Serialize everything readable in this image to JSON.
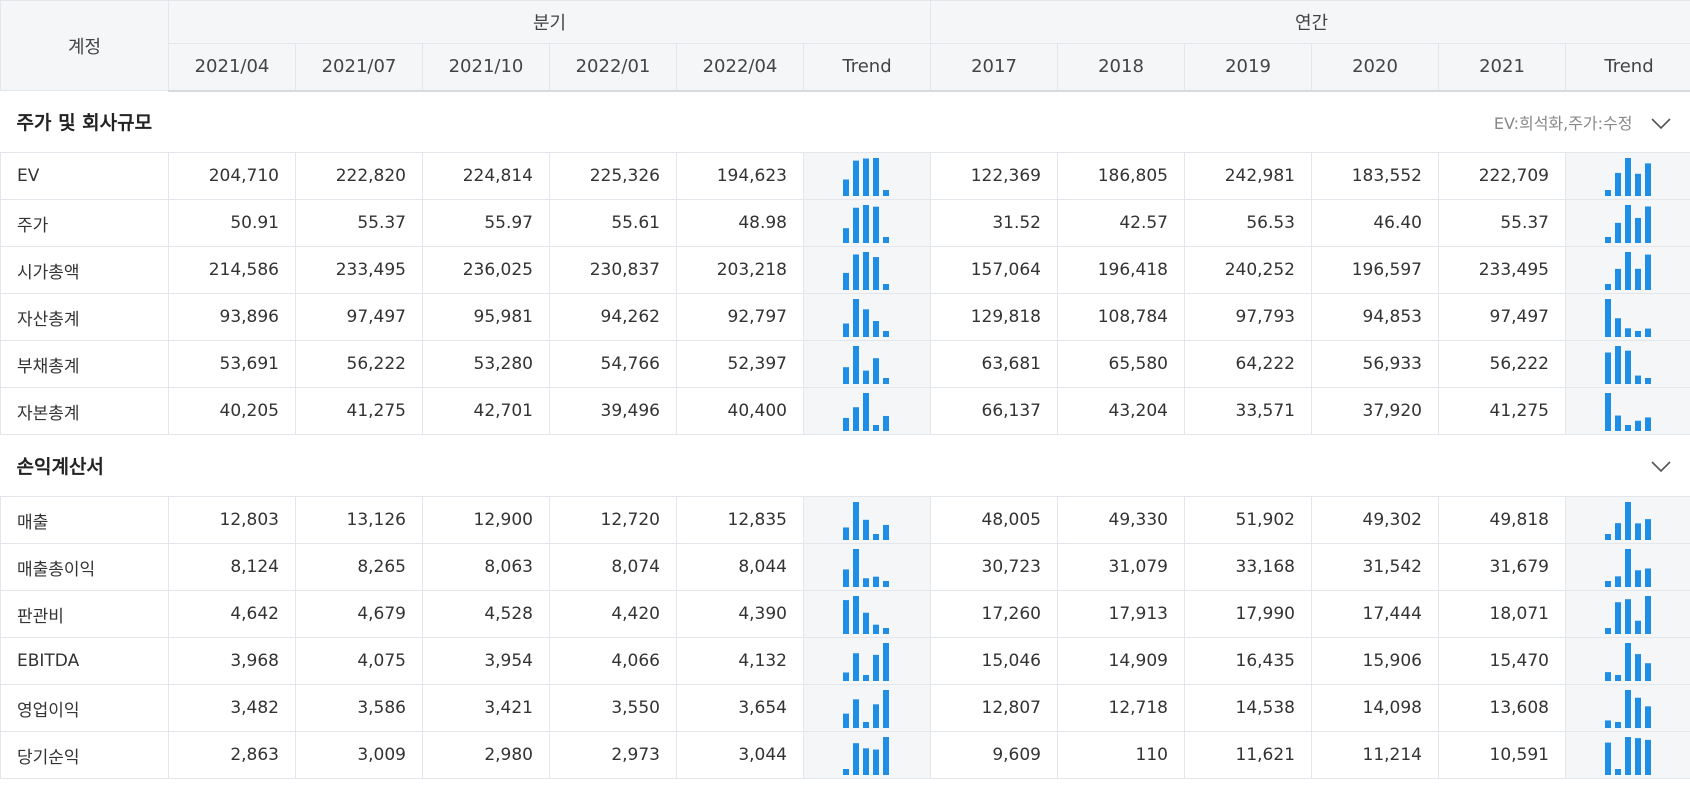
{
  "header": {
    "account": "계정",
    "quarterly": "분기",
    "annual": "연간",
    "quarters": [
      "2021/04",
      "2021/07",
      "2021/10",
      "2022/01",
      "2022/04"
    ],
    "years": [
      "2017",
      "2018",
      "2019",
      "2020",
      "2021"
    ],
    "trend": "Trend"
  },
  "sections": [
    {
      "title": "주가 및 회사규모",
      "note": "EV:희석화,주가:수정",
      "rows": [
        {
          "label": "EV",
          "quarterly": [
            "204,710",
            "222,820",
            "224,814",
            "225,326",
            "194,623"
          ],
          "annual": [
            "122,369",
            "186,805",
            "242,981",
            "183,552",
            "222,709"
          ]
        },
        {
          "label": "주가",
          "quarterly": [
            "50.91",
            "55.37",
            "55.97",
            "55.61",
            "48.98"
          ],
          "annual": [
            "31.52",
            "42.57",
            "56.53",
            "46.40",
            "55.37"
          ]
        },
        {
          "label": "시가총액",
          "quarterly": [
            "214,586",
            "233,495",
            "236,025",
            "230,837",
            "203,218"
          ],
          "annual": [
            "157,064",
            "196,418",
            "240,252",
            "196,597",
            "233,495"
          ]
        },
        {
          "label": "자산총계",
          "quarterly": [
            "93,896",
            "97,497",
            "95,981",
            "94,262",
            "92,797"
          ],
          "annual": [
            "129,818",
            "108,784",
            "97,793",
            "94,853",
            "97,497"
          ]
        },
        {
          "label": "부채총계",
          "quarterly": [
            "53,691",
            "56,222",
            "53,280",
            "54,766",
            "52,397"
          ],
          "annual": [
            "63,681",
            "65,580",
            "64,222",
            "56,933",
            "56,222"
          ]
        },
        {
          "label": "자본총계",
          "quarterly": [
            "40,205",
            "41,275",
            "42,701",
            "39,496",
            "40,400"
          ],
          "annual": [
            "66,137",
            "43,204",
            "33,571",
            "37,920",
            "41,275"
          ]
        }
      ]
    },
    {
      "title": "손익계산서",
      "note": "",
      "rows": [
        {
          "label": "매출",
          "quarterly": [
            "12,803",
            "13,126",
            "12,900",
            "12,720",
            "12,835"
          ],
          "annual": [
            "48,005",
            "49,330",
            "51,902",
            "49,302",
            "49,818"
          ]
        },
        {
          "label": "매출총이익",
          "quarterly": [
            "8,124",
            "8,265",
            "8,063",
            "8,074",
            "8,044"
          ],
          "annual": [
            "30,723",
            "31,079",
            "33,168",
            "31,542",
            "31,679"
          ]
        },
        {
          "label": "판관비",
          "quarterly": [
            "4,642",
            "4,679",
            "4,528",
            "4,420",
            "4,390"
          ],
          "annual": [
            "17,260",
            "17,913",
            "17,990",
            "17,444",
            "18,071"
          ]
        },
        {
          "label": "EBITDA",
          "quarterly": [
            "3,968",
            "4,075",
            "3,954",
            "4,066",
            "4,132"
          ],
          "annual": [
            "15,046",
            "14,909",
            "16,435",
            "15,906",
            "15,470"
          ]
        },
        {
          "label": "영업이익",
          "quarterly": [
            "3,482",
            "3,586",
            "3,421",
            "3,550",
            "3,654"
          ],
          "annual": [
            "12,807",
            "12,718",
            "14,538",
            "14,098",
            "13,608"
          ]
        },
        {
          "label": "당기순익",
          "quarterly": [
            "2,863",
            "3,009",
            "2,980",
            "2,973",
            "3,044"
          ],
          "annual": [
            "9,609",
            "110",
            "11,621",
            "11,214",
            "10,591"
          ]
        }
      ]
    }
  ],
  "colors": {
    "trend_bar": "#1f8ee6",
    "header_bg": "#f5f6f8",
    "border": "#e3e6ea"
  }
}
